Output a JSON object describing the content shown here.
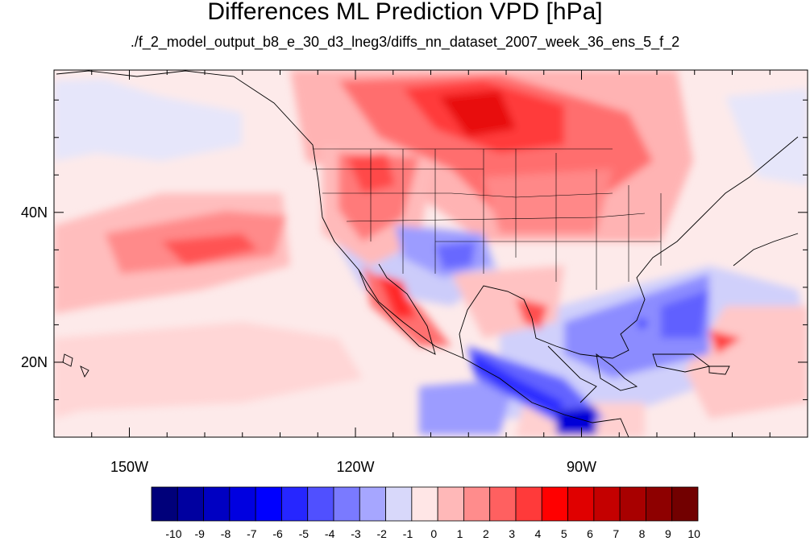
{
  "title": "Differences ML Prediction VPD [hPa]",
  "subtitle": "./f_2_model_output_b8_e_30_d3_lneg3/diffs_nn_dataset_2007_week_36_ens_5_f_2",
  "map": {
    "projection": "cylindrical equidistant",
    "lon_range": [
      -160,
      -60
    ],
    "lat_range": [
      10,
      59
    ],
    "lon_ticks": [
      {
        "value": -150,
        "label": "150W"
      },
      {
        "value": -120,
        "label": "120W"
      },
      {
        "value": -90,
        "label": "90W"
      }
    ],
    "lat_ticks": [
      {
        "value": 40,
        "label": "40N"
      },
      {
        "value": 20,
        "label": "20N"
      }
    ]
  },
  "colorbar": {
    "labels": [
      "-10",
      "-9",
      "-8",
      "-7",
      "-6",
      "-5",
      "-4",
      "-3",
      "-2",
      "-1",
      "0",
      "1",
      "2",
      "3",
      "4",
      "5",
      "6",
      "7",
      "8",
      "9",
      "10"
    ],
    "colors": [
      "#00007a",
      "#0000a0",
      "#0000c2",
      "#0000e0",
      "#0000ff",
      "#2626ff",
      "#5050ff",
      "#7a7aff",
      "#a6a6ff",
      "#d8d8fa",
      "#ffe6e6",
      "#ffb8b8",
      "#ff8c8c",
      "#ff6060",
      "#ff3a3a",
      "#ff0000",
      "#e00000",
      "#c40000",
      "#a80000",
      "#8e0000",
      "#720000"
    ]
  }
}
